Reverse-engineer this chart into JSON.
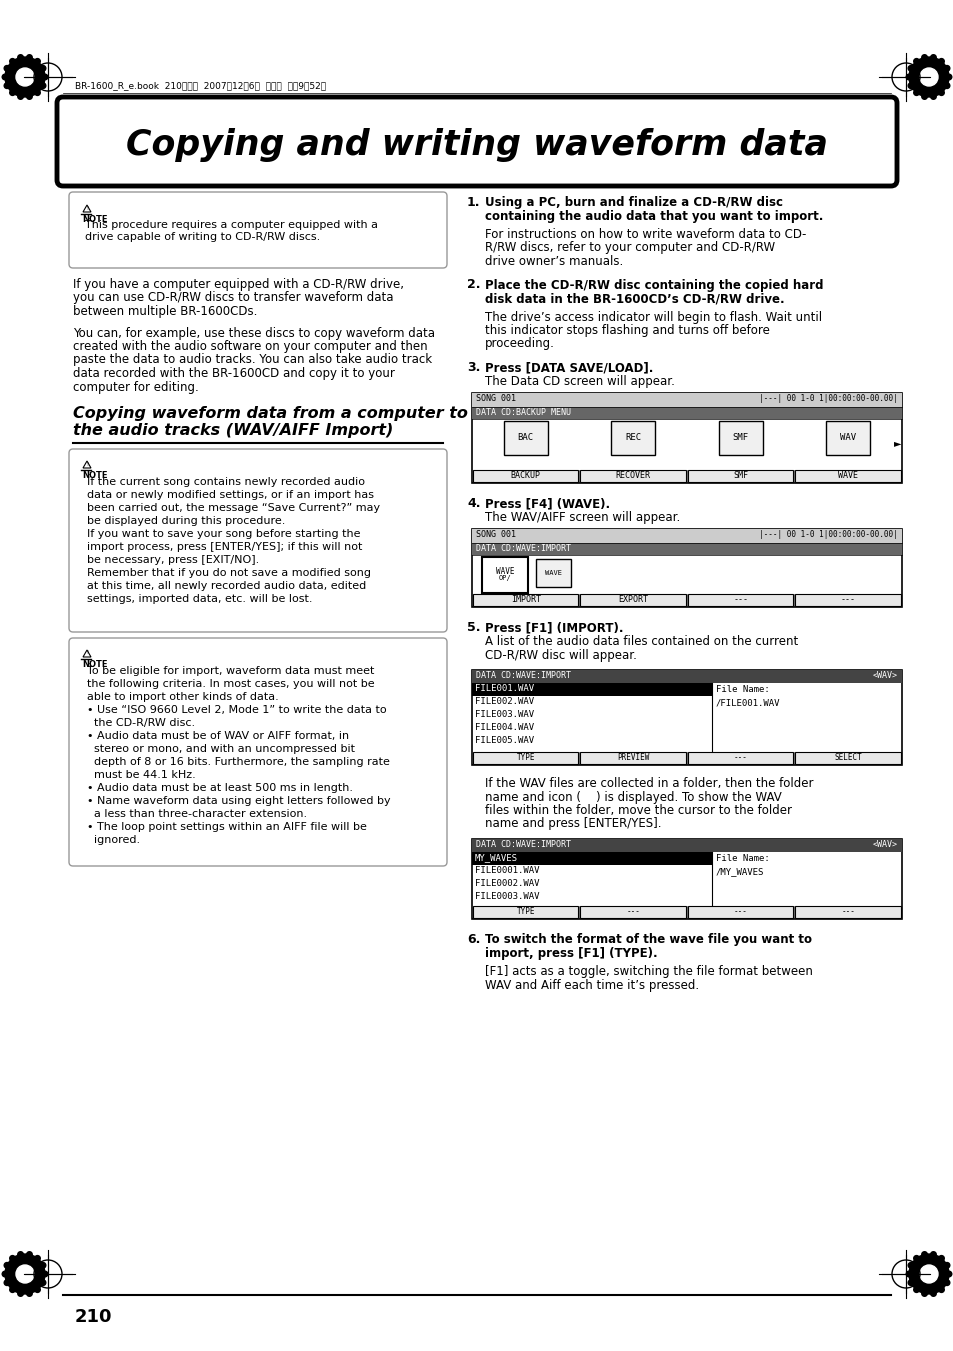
{
  "bg_color": "#ffffff",
  "page_header_text": "BR-1600_R_e.book  210ページ  2007年12月6日  木曜日  午前9晈52分",
  "main_title": "Copying and writing waveform data",
  "section_title_line1": "Copying waveform data from a computer to",
  "section_title_line2": "the audio tracks (WAV/AIFF Import)",
  "page_number": "210",
  "note1_line1": "This procedure requires a computer equipped with a",
  "note1_line2": "drive capable of writing to CD-R/RW discs.",
  "body1_lines": [
    "If you have a computer equipped with a CD-R/RW drive,",
    "you can use CD-R/RW discs to transfer waveform data",
    "between multiple BR-1600CDs."
  ],
  "body2_lines": [
    "You can, for example, use these discs to copy waveform data",
    "created with the audio software on your computer and then",
    "paste the data to audio tracks. You can also take audio track",
    "data recorded with the BR-1600CD and copy it to your",
    "computer for editing."
  ],
  "note2_lines": [
    "If the current song contains newly recorded audio",
    "data or newly modified settings, or if an import has",
    "been carried out, the message “Save Current?” may",
    "be displayed during this procedure.",
    "If you want to save your song before starting the",
    "import process, press [ENTER/YES]; if this will not",
    "be necessary, press [EXIT/NO].",
    "Remember that if you do not save a modified song",
    "at this time, all newly recorded audio data, edited",
    "settings, imported data, etc. will be lost."
  ],
  "note3_lines": [
    "To be eligible for import, waveform data must meet",
    "the following criteria. In most cases, you will not be",
    "able to import other kinds of data.",
    "• Use “ISO 9660 Level 2, Mode 1” to write the data to",
    "  the CD-R/RW disc.",
    "• Audio data must be of WAV or AIFF format, in",
    "  stereo or mono, and with an uncompressed bit",
    "  depth of 8 or 16 bits. Furthermore, the sampling rate",
    "  must be 44.1 kHz.",
    "• Audio data must be at least 500 ms in length.",
    "• Name waveform data using eight letters followed by",
    "  a less than three-character extension.",
    "• The loop point settings within an AIFF file will be",
    "  ignored."
  ],
  "step1_bold1": "Using a PC, burn and finalize a CD-R/RW disc",
  "step1_bold2": "containing the audio data that you want to import.",
  "step1_lines": [
    "For instructions on how to write waveform data to CD-",
    "R/RW discs, refer to your computer and CD-R/RW",
    "drive owner’s manuals."
  ],
  "step2_bold1": "Place the CD-R/RW disc containing the copied hard",
  "step2_bold2": "disk data in the BR-1600CD’s CD-R/RW drive.",
  "step2_lines": [
    "The drive’s access indicator will begin to flash. Wait until",
    "this indicator stops flashing and turns off before",
    "proceeding."
  ],
  "step3_bold": "Press [DATA SAVE/LOAD].",
  "step3_text": "The Data CD screen will appear.",
  "step4_bold": "Press [F4] (WAVE).",
  "step4_text": "The WAV/AIFF screen will appear.",
  "step5_bold": "Press [F1] (IMPORT).",
  "step5_lines": [
    "A list of the audio data files contained on the current",
    "CD-R/RW disc will appear."
  ],
  "folder_lines": [
    "If the WAV files are collected in a folder, then the folder",
    "name and icon (    ) is displayed. To show the WAV",
    "files within the folder, move the cursor to the folder",
    "name and press [ENTER/YES]."
  ],
  "step6_bold1": "To switch the format of the wave file you want to",
  "step6_bold2": "import, press [F1] (TYPE).",
  "step6_lines": [
    "[F1] acts as a toggle, switching the file format between",
    "WAV and Aiff each time it’s pressed."
  ]
}
